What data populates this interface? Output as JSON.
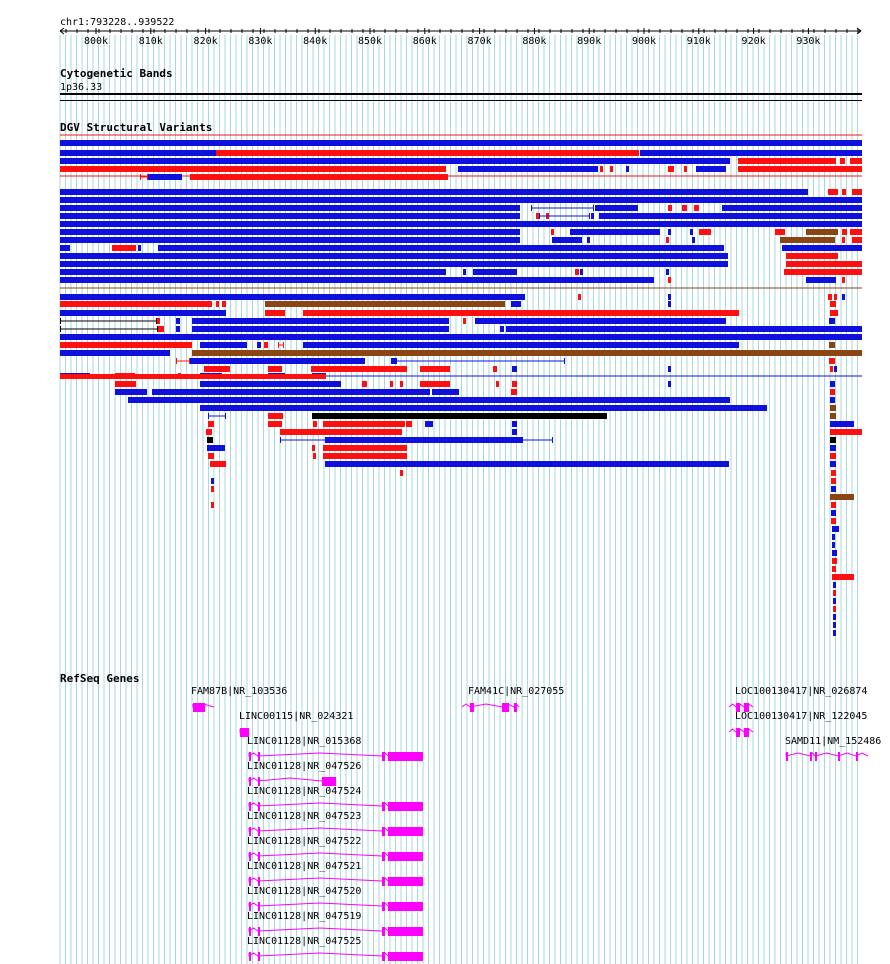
{
  "region": "chr1:793228..939522",
  "ruler": {
    "ticks": [
      "800k",
      "810k",
      "820k",
      "830k",
      "840k",
      "850k",
      "860k",
      "870k",
      "880k",
      "890k",
      "900k",
      "910k",
      "920k",
      "930k"
    ]
  },
  "tracks": {
    "cytoband": {
      "title": "Cytogenetic Bands",
      "band": "1p36.33"
    },
    "dgv": {
      "title": "DGV Structural Variants"
    },
    "refseq": {
      "title": "RefSeq Genes"
    }
  },
  "colors": {
    "grid": "#a8d8e0",
    "gain": "#ff1010",
    "loss": "#1010dd",
    "gain_loss": "#8b4513",
    "other": "#000000",
    "gene": "#ff00ff"
  },
  "genes": [
    {
      "label": "FAM87B|NR_103536"
    },
    {
      "label": "LINC00115|NR_024321"
    },
    {
      "label": "LINC01128|NR_015368"
    },
    {
      "label": "LINC01128|NR_047526"
    },
    {
      "label": "LINC01128|NR_047524"
    },
    {
      "label": "LINC01128|NR_047523"
    },
    {
      "label": "LINC01128|NR_047522"
    },
    {
      "label": "LINC01128|NR_047521"
    },
    {
      "label": "LINC01128|NR_047520"
    },
    {
      "label": "LINC01128|NR_047519"
    },
    {
      "label": "LINC01128|NR_047525"
    },
    {
      "label": "FAM41C|NR_027055"
    },
    {
      "label": "LOC100130417|NR_026874"
    },
    {
      "label": "LOC100130417|NR_122045"
    },
    {
      "label": "SAMD11|NM_152486"
    }
  ]
}
